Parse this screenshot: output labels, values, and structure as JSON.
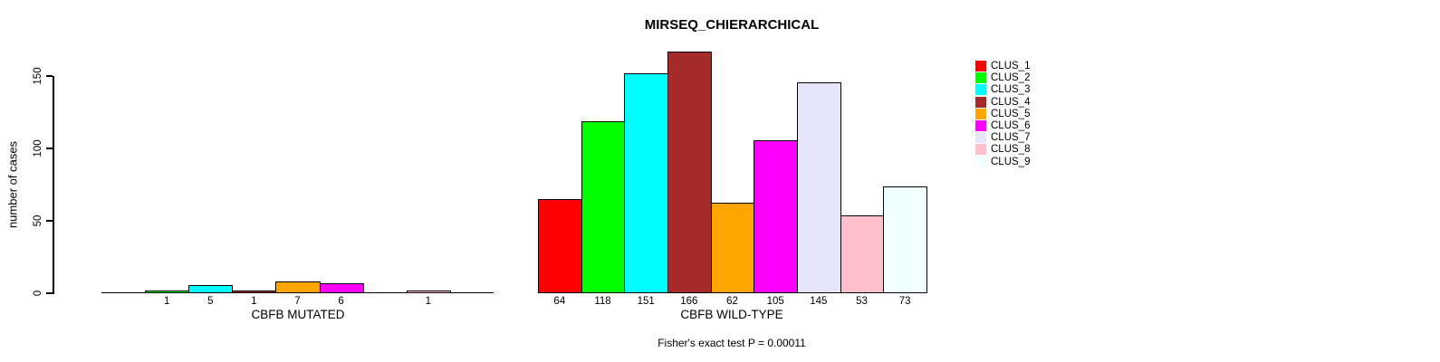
{
  "chart_data": {
    "type": "bar",
    "title": "MIRSEQ_CHIERARCHICAL",
    "ylabel": "number of cases",
    "annotation": "Fisher's exact test P = 0.00011",
    "yticks": [
      0,
      50,
      100,
      150
    ],
    "ylim": [
      0,
      166
    ],
    "grid": false,
    "legend_position": "right",
    "categories": [
      "CLUS_1",
      "CLUS_2",
      "CLUS_3",
      "CLUS_4",
      "CLUS_5",
      "CLUS_6",
      "CLUS_7",
      "CLUS_8",
      "CLUS_9"
    ],
    "colors": [
      "#FF0000",
      "#00FF00",
      "#00FFFF",
      "#A52A2A",
      "#FFA500",
      "#FF00FF",
      "#E6E6FA",
      "#FFC0CB",
      "#F0FFFF"
    ],
    "panels": [
      {
        "xlabel": "CBFB MUTATED",
        "values": [
          0,
          1,
          5,
          1,
          7,
          6,
          0,
          1,
          0
        ],
        "bar_labels": [
          "",
          "1",
          "5",
          "1",
          "7",
          "6",
          "",
          "1",
          ""
        ]
      },
      {
        "xlabel": "CBFB WILD-TYPE",
        "values": [
          64,
          118,
          151,
          166,
          62,
          105,
          145,
          53,
          73
        ],
        "bar_labels": [
          "64",
          "118",
          "151",
          "166",
          "62",
          "105",
          "145",
          "53",
          "73"
        ]
      }
    ]
  }
}
